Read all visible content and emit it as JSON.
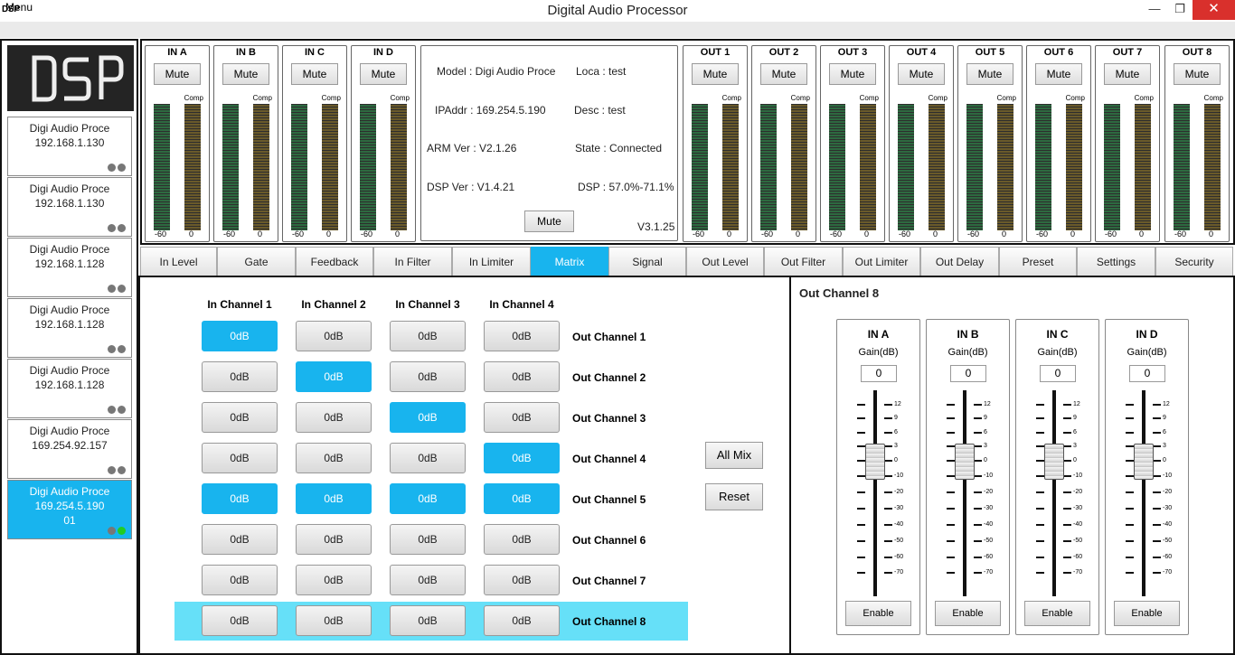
{
  "window": {
    "icon_text": "DSP",
    "title": "Digital Audio Processor",
    "min_icon": "minimize-icon",
    "max_icon": "restore-icon",
    "close_icon": "close-icon"
  },
  "menu": {
    "label": "Menu"
  },
  "logo": {
    "text": "DSP"
  },
  "devices": [
    {
      "name": "Digi Audio Proce",
      "ip": "192.168.1.130",
      "extra": "",
      "active": false,
      "status": [
        "#777777",
        "#777777"
      ]
    },
    {
      "name": "Digi Audio Proce",
      "ip": "192.168.1.130",
      "extra": "",
      "active": false,
      "status": [
        "#777777",
        "#777777"
      ]
    },
    {
      "name": "Digi Audio Proce",
      "ip": "192.168.1.128",
      "extra": "",
      "active": false,
      "status": [
        "#777777",
        "#777777"
      ]
    },
    {
      "name": "Digi Audio Proce",
      "ip": "192.168.1.128",
      "extra": "",
      "active": false,
      "status": [
        "#777777",
        "#777777"
      ]
    },
    {
      "name": "Digi Audio Proce",
      "ip": "192.168.1.128",
      "extra": "",
      "active": false,
      "status": [
        "#777777",
        "#777777"
      ]
    },
    {
      "name": "Digi Audio Proce",
      "ip": "169.254.92.157",
      "extra": "",
      "active": false,
      "status": [
        "#777777",
        "#777777"
      ]
    },
    {
      "name": "Digi Audio Proce",
      "ip": "169.254.5.190",
      "extra": "01",
      "active": true,
      "status": [
        "#777777",
        "#22cc22"
      ]
    }
  ],
  "meters": {
    "mute_label": "Mute",
    "comp_label": "Comp",
    "scale_left": "-60",
    "scale_right": "0",
    "inputs": [
      "IN A",
      "IN B",
      "IN C",
      "IN D"
    ],
    "outputs": [
      "OUT 1",
      "OUT 2",
      "OUT 3",
      "OUT 4",
      "OUT 5",
      "OUT 6",
      "OUT 7",
      "OUT 8"
    ]
  },
  "info": {
    "model": "Model : Digi Audio Proce",
    "loca": "Loca : test",
    "ipaddr": "IPAddr : 169.254.5.190",
    "desc": "Desc : test",
    "arm": "ARM Ver : V2.1.26",
    "state": "State : Connected",
    "dsp_ver": "DSP Ver : V1.4.21",
    "dsp_load": "DSP : 57.0%-71.1%",
    "mute": "Mute",
    "version": "V3.1.25"
  },
  "tabs": [
    {
      "label": "In Level",
      "active": false
    },
    {
      "label": "Gate",
      "active": false
    },
    {
      "label": "Feedback",
      "active": false
    },
    {
      "label": "In Filter",
      "active": false
    },
    {
      "label": "In Limiter",
      "active": false
    },
    {
      "label": "Matrix",
      "active": true
    },
    {
      "label": "Signal",
      "active": false
    },
    {
      "label": "Out Level",
      "active": false
    },
    {
      "label": "Out Filter",
      "active": false
    },
    {
      "label": "Out Limiter",
      "active": false
    },
    {
      "label": "Out Delay",
      "active": false
    },
    {
      "label": "Preset",
      "active": false
    },
    {
      "label": "Settings",
      "active": false
    },
    {
      "label": "Security",
      "active": false
    }
  ],
  "matrix": {
    "in_channels": [
      "In Channel 1",
      "In Channel 2",
      "In Channel 3",
      "In Channel 4"
    ],
    "out_channels": [
      "Out Channel 1",
      "Out Channel 2",
      "Out Channel 3",
      "Out Channel 4",
      "Out Channel 5",
      "Out Channel 6",
      "Out Channel 7",
      "Out Channel 8"
    ],
    "cell_value": "0dB",
    "active": [
      [
        1,
        0,
        0,
        0
      ],
      [
        0,
        1,
        0,
        0
      ],
      [
        0,
        0,
        1,
        0
      ],
      [
        0,
        0,
        0,
        1
      ],
      [
        1,
        1,
        1,
        1
      ],
      [
        0,
        0,
        0,
        0
      ],
      [
        0,
        0,
        0,
        0
      ],
      [
        0,
        0,
        0,
        0
      ]
    ],
    "selected_row": 8,
    "all_mix": "All Mix",
    "reset": "Reset"
  },
  "out_panel": {
    "title": "Out Channel 8",
    "gain_label": "Gain(dB)",
    "enable_label": "Enable",
    "scale": [
      "12",
      "9",
      "6",
      "3",
      "0",
      "-10",
      "-20",
      "-30",
      "-40",
      "-50",
      "-60",
      "-70"
    ],
    "faders": [
      {
        "name": "IN A",
        "gain": "0"
      },
      {
        "name": "IN B",
        "gain": "0"
      },
      {
        "name": "IN C",
        "gain": "0"
      },
      {
        "name": "IN D",
        "gain": "0"
      }
    ]
  },
  "colors": {
    "accent": "#18b4ee",
    "highlight_row": "#66e0f8",
    "close": "#d9302c",
    "status_on": "#22cc22"
  }
}
